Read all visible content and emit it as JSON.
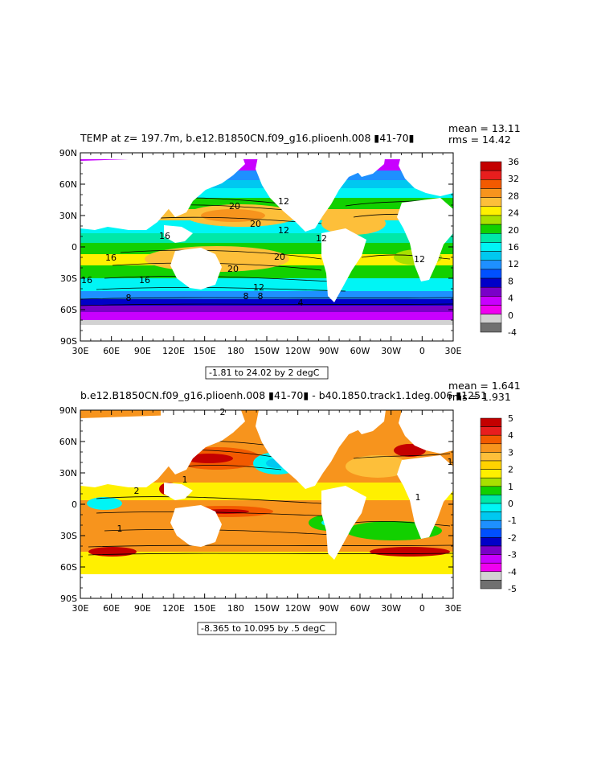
{
  "panels": [
    {
      "title": "TEMP at z= 197.7m, b.e12.B1850CN.f09_g16.plioenh.008 ▮41-70▮",
      "mean_text": "mean = 13.11",
      "rms_text": "rms = 14.42",
      "range_text": "-1.81 to 24.02 by 2 degC",
      "lon_ticks": [
        "30E",
        "60E",
        "90E",
        "120E",
        "150E",
        "180",
        "150W",
        "120W",
        "90W",
        "60W",
        "30W",
        "0",
        "30E"
      ],
      "lat_ticks": [
        "90N",
        "60N",
        "30N",
        "0",
        "30S",
        "60S",
        "90S"
      ],
      "colorbar": {
        "labels": [
          "36",
          "32",
          "28",
          "24",
          "20",
          "16",
          "12",
          "8",
          "4",
          "0",
          "-4"
        ],
        "colors": [
          "#c40000",
          "#e81e1e",
          "#f25a00",
          "#f7941d",
          "#fdbf3a",
          "#fff000",
          "#a8e000",
          "#12d000",
          "#00e8a8",
          "#00f5f5",
          "#00c8f0",
          "#1e90ff",
          "#0050ff",
          "#0000c8",
          "#7a00c8",
          "#c800ff",
          "#f000f0",
          "#d2d2d2",
          "#707070"
        ]
      },
      "contour_labels": [
        "20",
        "20",
        "16",
        "16",
        "16",
        "12",
        "12",
        "12",
        "12",
        "20",
        "8",
        "8",
        "8",
        "4",
        "20",
        "16",
        "12"
      ],
      "chart_data": {
        "type": "heatmap",
        "variable": "TEMP",
        "depth_m": 197.7,
        "case": "b.e12.B1850CN.f09_g16.plioenh.008",
        "years": "41-70",
        "units": "degC",
        "min": -1.81,
        "max": 24.02,
        "contour_interval": 2,
        "mean": 13.11,
        "rms": 14.42,
        "colorbar_range": [
          -4,
          36
        ]
      }
    },
    {
      "title": "b.e12.B1850CN.f09_g16.plioenh.008 ▮41-70▮ - b40.1850.track1.1deg.006 ▮1251",
      "mean_text": "mean = 1.641",
      "rms_text": "rms = 1.931",
      "range_text": "-8.365 to 10.095 by .5 degC",
      "lon_ticks": [
        "30E",
        "60E",
        "90E",
        "120E",
        "150E",
        "180",
        "150W",
        "120W",
        "90W",
        "60W",
        "30W",
        "0",
        "30E"
      ],
      "lat_ticks": [
        "90N",
        "60N",
        "30N",
        "0",
        "30S",
        "60S",
        "90S"
      ],
      "colorbar": {
        "labels": [
          "5",
          "4",
          "3",
          "2",
          "1",
          "0",
          "-1",
          "-2",
          "-3",
          "-4",
          "-5"
        ],
        "colors": [
          "#c40000",
          "#e81e1e",
          "#f25a00",
          "#f7941d",
          "#fdbf3a",
          "#ffd200",
          "#fff000",
          "#a8e000",
          "#12d000",
          "#00e8a8",
          "#00f5f5",
          "#00c8f0",
          "#1e90ff",
          "#0050ff",
          "#0000c8",
          "#7a00c8",
          "#c800ff",
          "#f000f0",
          "#d2d2d2",
          "#707070"
        ]
      },
      "contour_labels": [
        "2",
        "2",
        "1",
        "1",
        "1",
        "1"
      ],
      "chart_data": {
        "type": "heatmap",
        "variable": "TEMP difference",
        "case_a": "b.e12.B1850CN.f09_g16.plioenh.008",
        "case_b": "b40.1850.track1.1deg.006",
        "units": "degC",
        "min": -8.365,
        "max": 10.095,
        "contour_interval": 0.5,
        "mean": 1.641,
        "rms": 1.931,
        "colorbar_range": [
          -5,
          5
        ]
      }
    }
  ]
}
